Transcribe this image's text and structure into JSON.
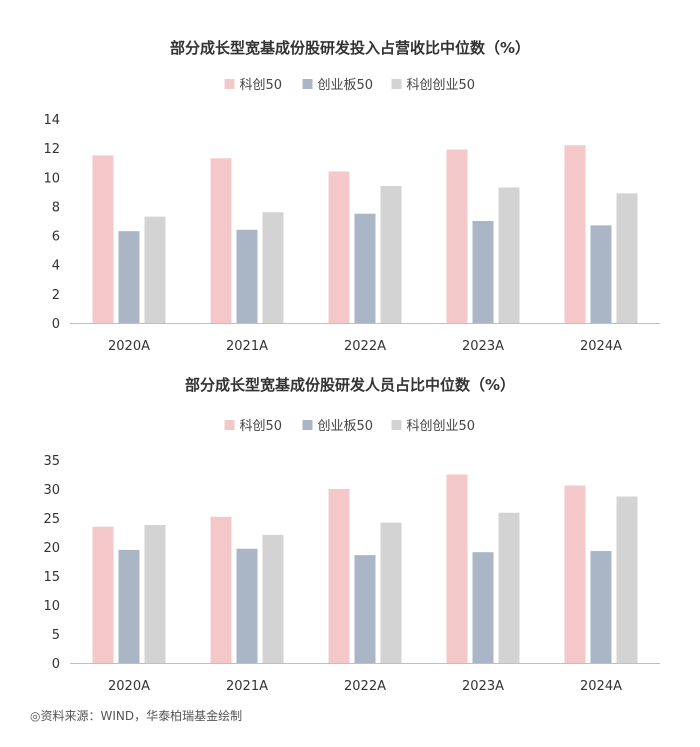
{
  "chart_data": [
    {
      "type": "bar",
      "title": "部分成长型宽基成份股研发投入占营收比中位数（%）",
      "categories": [
        "2020A",
        "2021A",
        "2022A",
        "2023A",
        "2024A"
      ],
      "series": [
        {
          "name": "科创50",
          "color": "#f4c7c8",
          "values": [
            11.5,
            11.3,
            10.4,
            11.9,
            12.2
          ]
        },
        {
          "name": "创业板50",
          "color": "#aab6c6",
          "values": [
            6.3,
            6.4,
            7.5,
            7.0,
            6.7
          ]
        },
        {
          "name": "科创创业50",
          "color": "#d3d3d3",
          "values": [
            7.3,
            7.6,
            9.4,
            9.3,
            8.9
          ]
        }
      ],
      "ylim": [
        0,
        14
      ],
      "yticks": [
        0,
        2,
        4,
        6,
        8,
        10,
        12,
        14
      ],
      "legend": "top-center",
      "grid": false
    },
    {
      "type": "bar",
      "title": "部分成长型宽基成份股研发人员占比中位数（%）",
      "categories": [
        "2020A",
        "2021A",
        "2022A",
        "2023A",
        "2024A"
      ],
      "series": [
        {
          "name": "科创50",
          "color": "#f4c7c8",
          "values": [
            23.5,
            25.2,
            30.0,
            32.5,
            30.6
          ]
        },
        {
          "name": "创业板50",
          "color": "#aab6c6",
          "values": [
            19.5,
            19.7,
            18.6,
            19.1,
            19.3
          ]
        },
        {
          "name": "科创创业50",
          "color": "#d3d3d3",
          "values": [
            23.8,
            22.1,
            24.2,
            25.9,
            28.7
          ]
        }
      ],
      "ylim": [
        0,
        35
      ],
      "yticks": [
        0,
        5,
        10,
        15,
        20,
        25,
        30,
        35
      ],
      "legend": "top-center",
      "grid": false
    }
  ],
  "source": "◎资料来源：WIND，华泰柏瑞基金绘制"
}
